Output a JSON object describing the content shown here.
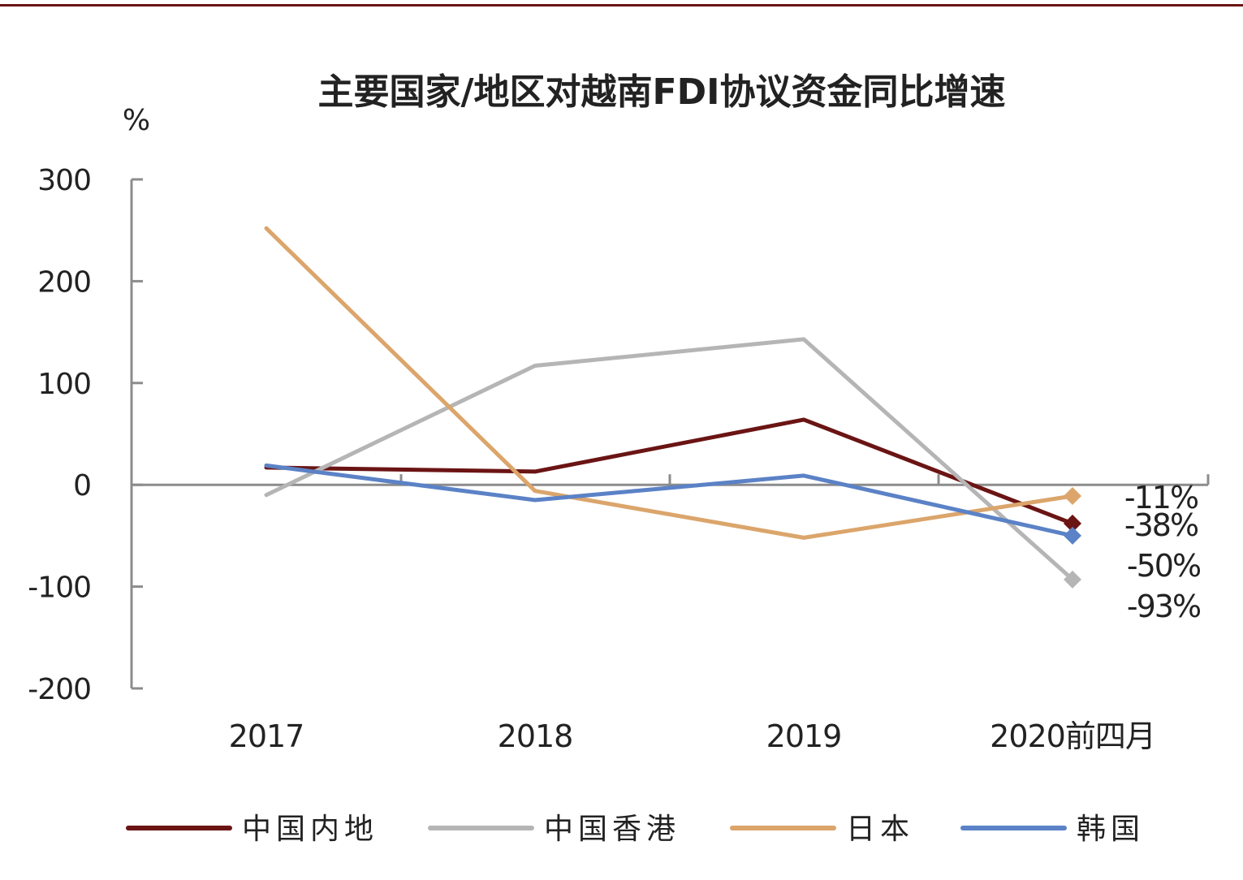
{
  "chart_data": {
    "type": "line",
    "title": "主要国家/地区对越南FDI协议资金同比增速",
    "ylabel": "%",
    "xlabel": "",
    "ylim": [
      -200,
      300
    ],
    "yticks": [
      300,
      200,
      100,
      0,
      -100,
      -200
    ],
    "categories": [
      "2017",
      "2018",
      "2019",
      "2020前四月"
    ],
    "series": [
      {
        "name": "中国内地",
        "color": "#6b1414",
        "values": [
          17,
          13,
          64,
          -38
        ]
      },
      {
        "name": "中国香港",
        "color": "#b5b5b5",
        "values": [
          -10,
          117,
          143,
          -93
        ]
      },
      {
        "name": "日本",
        "color": "#dba56b",
        "values": [
          252,
          -6,
          -52,
          -11
        ]
      },
      {
        "name": "韩国",
        "color": "#5b82c6",
        "values": [
          19,
          -15,
          9,
          -50
        ]
      }
    ],
    "end_labels": [
      "-11%",
      "-38%",
      "-50%",
      "-93%"
    ],
    "legend_position": "bottom",
    "grid": false
  },
  "colors": {
    "frame_rule": "#6b1414",
    "axis": "#8c8c8c",
    "text": "#222222"
  }
}
